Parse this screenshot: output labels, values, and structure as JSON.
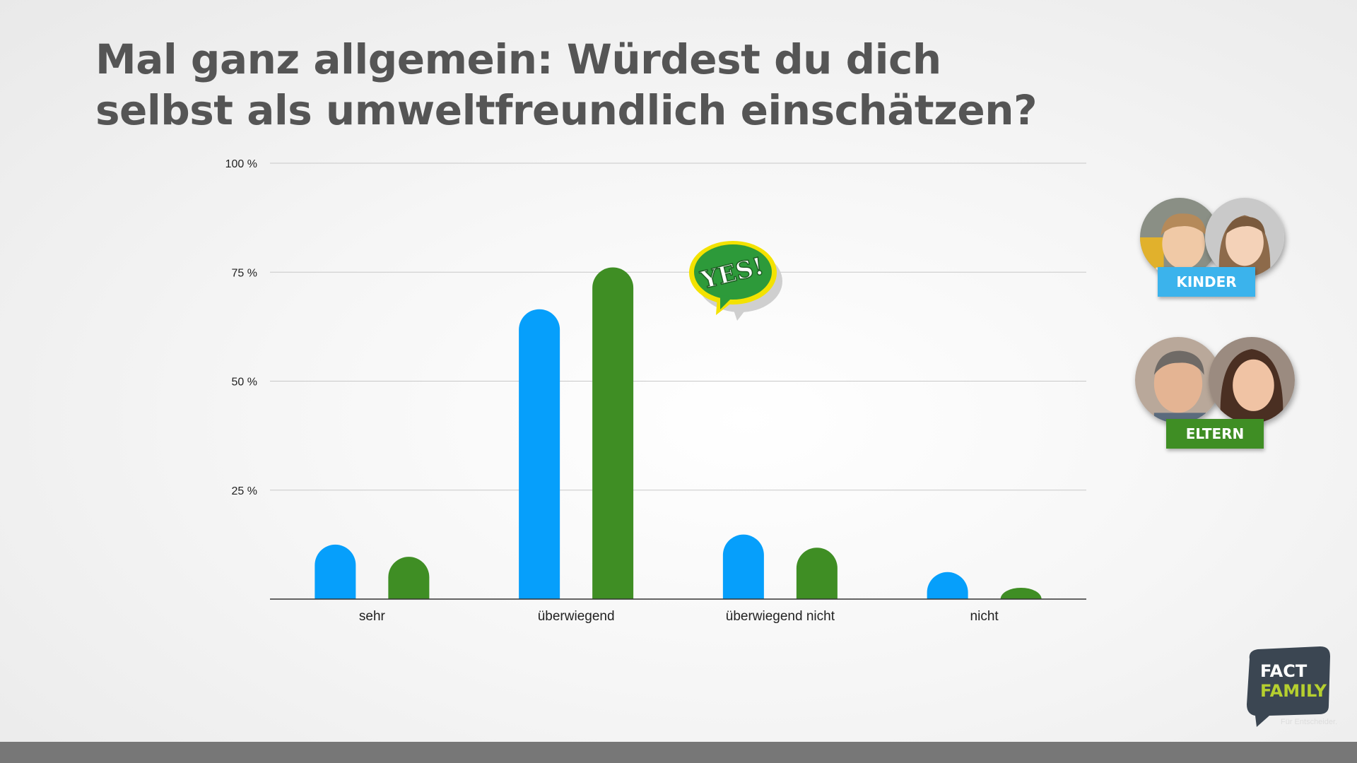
{
  "title": "Mal ganz allgemein: Würdest du dich selbst als umweltfreundlich einschätzen?",
  "chart_data": {
    "type": "bar",
    "categories": [
      "sehr",
      "überwiegend",
      "überwiegend nicht",
      "nicht"
    ],
    "series": [
      {
        "name": "KINDER",
        "color": "#069ffb",
        "values": [
          12.5,
          66.5,
          14.8,
          6.2
        ]
      },
      {
        "name": "ELTERN",
        "color": "#3f8e24",
        "values": [
          9.7,
          76.1,
          11.8,
          2.6
        ]
      }
    ],
    "y_ticks": [
      "25 %",
      "50 %",
      "75 %",
      "100 %"
    ],
    "ylim": [
      0,
      100
    ],
    "grid": true,
    "legend_position": "right"
  },
  "legend": {
    "kinder_label": "KINDER",
    "kinder_color": "#3bb3ec",
    "eltern_label": "ELTERN",
    "eltern_color": "#3f8e24"
  },
  "badge": {
    "text": "YES!"
  },
  "logo": {
    "line1": "FACT",
    "line2": "FAMILY",
    "tagline": "Für Entscheider."
  }
}
